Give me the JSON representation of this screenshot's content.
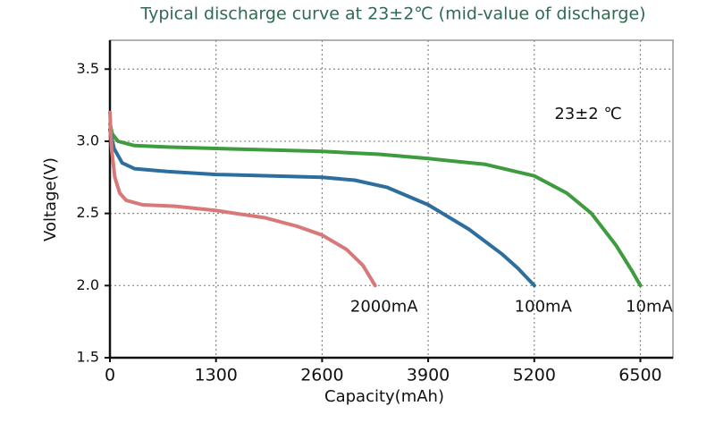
{
  "chart_data": {
    "type": "line",
    "title": "Typical discharge curve at 23±2℃ (mid-value of discharge)",
    "xlabel": "Capacity(mAh)",
    "ylabel": "Voltage(V)",
    "annotation": "23±2 ℃",
    "xlim": [
      0,
      6900
    ],
    "ylim": [
      1.5,
      3.7
    ],
    "xticks": [
      0,
      1300,
      2600,
      3900,
      5200,
      6500
    ],
    "yticks": [
      1.5,
      {
        "value": 2.0,
        "label": "2.0"
      },
      2.5,
      {
        "value": 3.0,
        "label": "3.0"
      },
      3.5
    ],
    "grid": true,
    "series": [
      {
        "name": "10mA",
        "color": "#3e9b3e",
        "x": [
          0,
          30,
          100,
          300,
          700,
          1300,
          2600,
          3300,
          3900,
          4600,
          5200,
          5600,
          5900,
          6200,
          6400,
          6500
        ],
        "values": [
          3.12,
          3.05,
          3.0,
          2.97,
          2.96,
          2.95,
          2.93,
          2.91,
          2.88,
          2.84,
          2.76,
          2.64,
          2.5,
          2.28,
          2.1,
          2.0
        ]
      },
      {
        "name": "100mA",
        "color": "#2c6f9e",
        "x": [
          0,
          50,
          150,
          300,
          700,
          1300,
          2000,
          2600,
          3000,
          3400,
          3900,
          4400,
          4800,
          5000,
          5200
        ],
        "values": [
          3.08,
          2.95,
          2.85,
          2.81,
          2.79,
          2.77,
          2.76,
          2.75,
          2.73,
          2.68,
          2.56,
          2.39,
          2.22,
          2.12,
          2.0
        ]
      },
      {
        "name": "2000mA",
        "color": "#d87878",
        "x": [
          0,
          20,
          60,
          120,
          200,
          400,
          800,
          1300,
          1900,
          2300,
          2600,
          2900,
          3100,
          3250
        ],
        "values": [
          3.2,
          2.95,
          2.75,
          2.64,
          2.59,
          2.56,
          2.55,
          2.52,
          2.47,
          2.41,
          2.35,
          2.25,
          2.14,
          2.0
        ]
      }
    ]
  }
}
